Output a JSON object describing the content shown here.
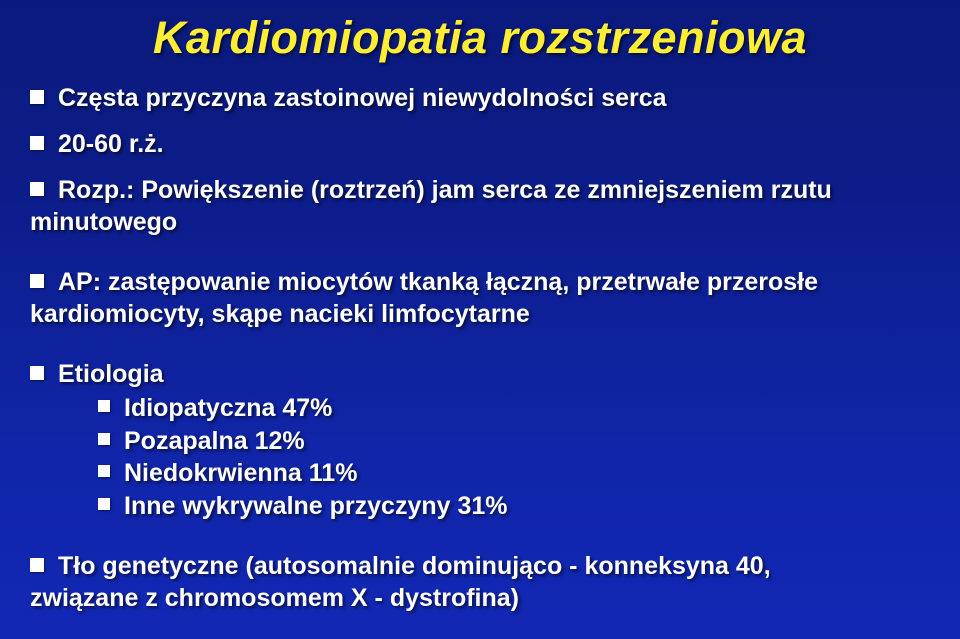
{
  "title": "Kardiomiopatia rozstrzeniowa",
  "line1": "Częsta przyczyna zastoinowej niewydolności serca",
  "line2": "20-60 r.ż.",
  "line3a": "Rozp.: Powiększenie (roztrzeń) jam serca ze zmniejszeniem rzutu",
  "line3b": "minutowego",
  "line4a": "AP: zastępowanie miocytów tkanką łączną, przetrwałe przerosłe",
  "line4b": "kardiomiocyty, skąpe nacieki limfocytarne",
  "etio_label": "Etiologia",
  "etio": {
    "i1": "Idiopatyczna 47%",
    "i2": "Pozapalna 12%",
    "i3": "Niedokrwienna 11%",
    "i4": "Inne wykrywalne przyczyny 31%"
  },
  "lastA": "Tło genetyczne (autosomalnie dominująco - konneksyna 40,",
  "lastB": "związane z chromosomem X - dystrofina)"
}
